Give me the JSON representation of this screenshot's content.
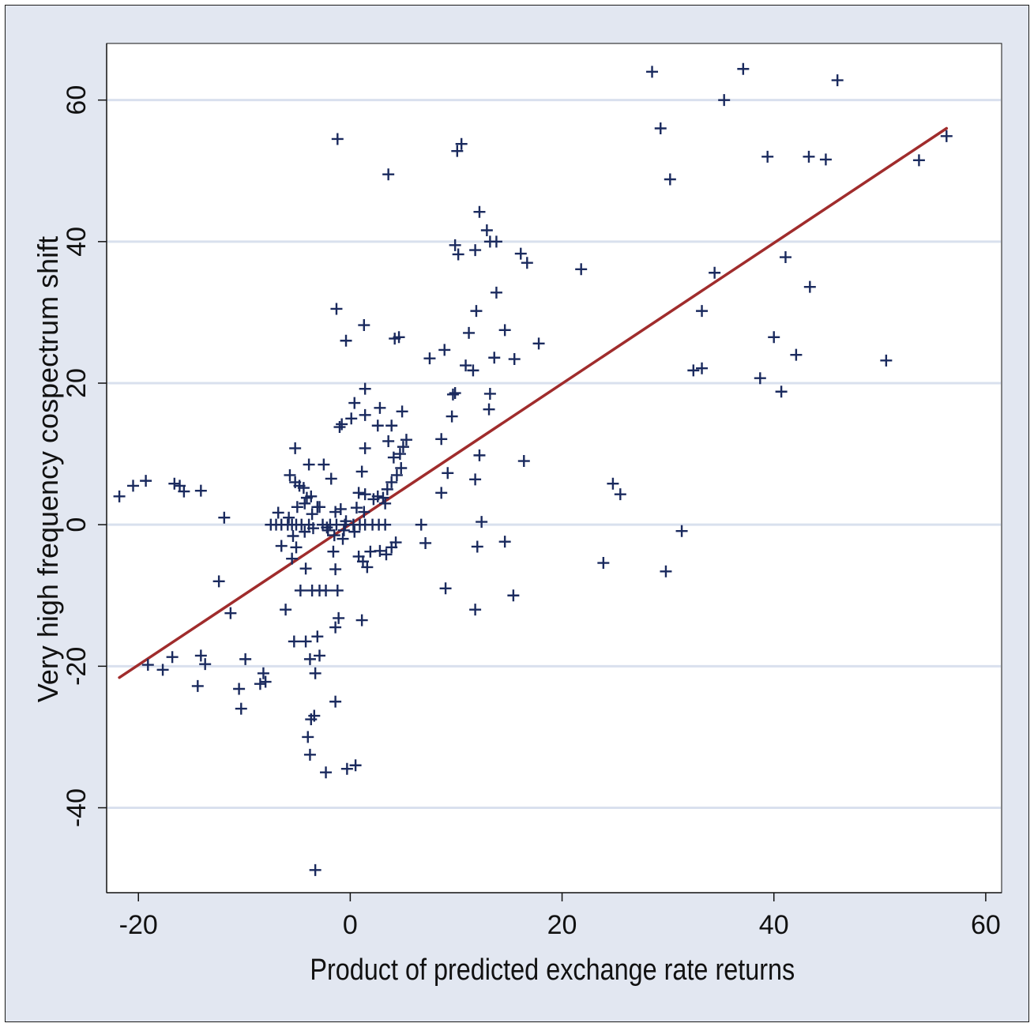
{
  "colors": {
    "frame_background": "#e2e7f1",
    "plot_background": "#ffffff",
    "gridline": "#d9e0ee",
    "marker": "#1a2a5e",
    "fit_line": "#a02c2c",
    "axis": "#111111"
  },
  "chart_data": {
    "type": "scatter",
    "title": "",
    "xlabel": "Product of predicted exchange rate returns",
    "ylabel": "Very high frequency cospectrum shift",
    "xlim": [
      -23,
      61.5
    ],
    "ylim": [
      -52,
      68
    ],
    "xticks": [
      -20,
      0,
      20,
      40,
      60
    ],
    "yticks": [
      -40,
      -20,
      0,
      20,
      40,
      60
    ],
    "grid": "horizontal",
    "legend": "none",
    "marker": "plus",
    "fit_line": {
      "x": [
        -21.8,
        56.3
      ],
      "y": [
        -21.6,
        56
      ]
    },
    "points": [
      [
        -21.8,
        4
      ],
      [
        -20.5,
        5.5
      ],
      [
        -19.3,
        6.2
      ],
      [
        -16.6,
        5.8
      ],
      [
        -16.1,
        5.5
      ],
      [
        -15.7,
        4.7
      ],
      [
        -14.1,
        4.8
      ],
      [
        -11.9,
        1
      ],
      [
        -12.4,
        -8
      ],
      [
        -11.3,
        -12.5
      ],
      [
        -14.1,
        -18.5
      ],
      [
        -13.7,
        -19.7
      ],
      [
        -16.8,
        -18.7
      ],
      [
        -17.7,
        -20.5
      ],
      [
        -19.1,
        -19.8
      ],
      [
        -14.4,
        -22.8
      ],
      [
        -10.5,
        -23.2
      ],
      [
        -9.9,
        -19
      ],
      [
        -10.3,
        -26
      ],
      [
        -8.2,
        -21
      ],
      [
        -8,
        -22.2
      ],
      [
        -8.5,
        -22.5
      ],
      [
        -6.5,
        -3
      ],
      [
        -6.1,
        -12
      ],
      [
        -5.3,
        -16.5
      ],
      [
        -4.2,
        -16.5
      ],
      [
        -3.8,
        -19
      ],
      [
        -2.9,
        -18.5
      ],
      [
        -3.3,
        -21
      ],
      [
        -3.7,
        -27.5
      ],
      [
        -3.4,
        -27
      ],
      [
        -4,
        -30
      ],
      [
        -3.8,
        -32.5
      ],
      [
        -2.3,
        -35
      ],
      [
        -1.4,
        -25
      ],
      [
        -0.3,
        -34.5
      ],
      [
        0.5,
        -34
      ],
      [
        -3.3,
        -48.8
      ],
      [
        -3.1,
        -15.8
      ],
      [
        -1.4,
        -14.5
      ],
      [
        -1.1,
        -13.2
      ],
      [
        1.1,
        -13.5
      ],
      [
        -3.6,
        -9.3
      ],
      [
        -2.9,
        -9.3
      ],
      [
        -2.3,
        -9.3
      ],
      [
        -1.2,
        -9.3
      ],
      [
        -4.7,
        -9.3
      ],
      [
        -4.2,
        -6.2
      ],
      [
        -5.5,
        -4.8
      ],
      [
        -5.1,
        -3.2
      ],
      [
        -4.3,
        -1
      ],
      [
        -3.5,
        -0.5
      ],
      [
        -2.1,
        -0.8
      ],
      [
        -1.5,
        -1.5
      ],
      [
        -0.7,
        -2
      ],
      [
        -7.5,
        0
      ],
      [
        -7,
        0
      ],
      [
        -6.5,
        0
      ],
      [
        -5.9,
        0
      ],
      [
        -5.5,
        0
      ],
      [
        -5.1,
        0
      ],
      [
        -4.6,
        0
      ],
      [
        -3.9,
        0
      ],
      [
        -2.6,
        0
      ],
      [
        -1.9,
        0
      ],
      [
        -1.3,
        0
      ],
      [
        -0.5,
        0
      ],
      [
        0.3,
        0
      ],
      [
        0.9,
        0
      ],
      [
        1.4,
        0
      ],
      [
        2.1,
        0
      ],
      [
        2.7,
        0
      ],
      [
        3.3,
        0
      ],
      [
        -6.8,
        1.7
      ],
      [
        -5.8,
        1
      ],
      [
        -5,
        2.5
      ],
      [
        -4.3,
        3
      ],
      [
        -3.6,
        1.5
      ],
      [
        -2.9,
        2.5
      ],
      [
        -1.4,
        1.8
      ],
      [
        -0.9,
        2.2
      ],
      [
        0.6,
        2.4
      ],
      [
        1.3,
        1.8
      ],
      [
        2.2,
        3.6
      ],
      [
        3.1,
        3.8
      ],
      [
        3.5,
        5
      ],
      [
        3.9,
        6
      ],
      [
        4.4,
        7
      ],
      [
        4.8,
        8
      ],
      [
        5,
        11
      ],
      [
        5.3,
        12
      ],
      [
        4.7,
        10
      ],
      [
        4.1,
        9.5
      ],
      [
        -5.7,
        7
      ],
      [
        -5.2,
        6
      ],
      [
        -4.8,
        5.5
      ],
      [
        -4.4,
        5.2
      ],
      [
        -3.7,
        4
      ],
      [
        -1.8,
        6.5
      ],
      [
        -5.2,
        10.8
      ],
      [
        -3.9,
        8.5
      ],
      [
        -2.5,
        8.5
      ],
      [
        -4.1,
        3.8
      ],
      [
        -5.4,
        -1.6
      ],
      [
        -3.1,
        2.5
      ],
      [
        -2.2,
        -0.4
      ],
      [
        -1.6,
        -3.8
      ],
      [
        -0.6,
        -0.8
      ],
      [
        -1.4,
        -6.3
      ],
      [
        -0.4,
        0.5
      ],
      [
        0.4,
        -1
      ],
      [
        0.8,
        -4.5
      ],
      [
        1.2,
        -5.2
      ],
      [
        1.6,
        -6
      ],
      [
        1.9,
        -3.8
      ],
      [
        2.8,
        -3.7
      ],
      [
        3.4,
        -4.2
      ],
      [
        3.9,
        -3.2
      ],
      [
        4.3,
        -2.5
      ],
      [
        -1,
        13.8
      ],
      [
        -0.8,
        14.2
      ],
      [
        0.1,
        15
      ],
      [
        0.4,
        17.2
      ],
      [
        1.4,
        15.5
      ],
      [
        1.4,
        19.2
      ],
      [
        2.6,
        14
      ],
      [
        2.8,
        16.5
      ],
      [
        3.9,
        14
      ],
      [
        3.6,
        11.8
      ],
      [
        4.9,
        16
      ],
      [
        1.4,
        10.8
      ],
      [
        1.1,
        7.5
      ],
      [
        0.8,
        4.5
      ],
      [
        1.4,
        4.3
      ],
      [
        2.6,
        4
      ],
      [
        3.3,
        3
      ],
      [
        -1.3,
        30.5
      ],
      [
        -0.4,
        26
      ],
      [
        1.3,
        28.2
      ],
      [
        4.2,
        26.3
      ],
      [
        4.6,
        26.5
      ],
      [
        -1.2,
        54.5
      ],
      [
        3.6,
        49.5
      ],
      [
        10.1,
        52.8
      ],
      [
        10.5,
        53.8
      ],
      [
        9.9,
        39.5
      ],
      [
        10.2,
        38.2
      ],
      [
        11.8,
        38.8
      ],
      [
        12.2,
        44.2
      ],
      [
        12.9,
        41.6
      ],
      [
        13.2,
        40
      ],
      [
        13.8,
        40
      ],
      [
        16.1,
        38.3
      ],
      [
        16.7,
        37
      ],
      [
        21.8,
        36.1
      ],
      [
        13.8,
        32.8
      ],
      [
        14.6,
        27.5
      ],
      [
        11.9,
        30.2
      ],
      [
        11.2,
        27.1
      ],
      [
        10.9,
        22.5
      ],
      [
        11.6,
        21.8
      ],
      [
        13.6,
        23.6
      ],
      [
        15.5,
        23.4
      ],
      [
        17.8,
        25.6
      ],
      [
        7.5,
        23.5
      ],
      [
        8.9,
        24.7
      ],
      [
        9.7,
        18.4
      ],
      [
        9.9,
        18.6
      ],
      [
        13.2,
        18.5
      ],
      [
        13.1,
        16.3
      ],
      [
        9.6,
        15.3
      ],
      [
        8.6,
        12.1
      ],
      [
        12.2,
        9.8
      ],
      [
        16.4,
        9
      ],
      [
        9.2,
        7.3
      ],
      [
        11.8,
        6.4
      ],
      [
        8.6,
        4.5
      ],
      [
        12.4,
        0.4
      ],
      [
        6.7,
        0
      ],
      [
        7.1,
        -2.6
      ],
      [
        12,
        -3.1
      ],
      [
        14.6,
        -2.4
      ],
      [
        9,
        -9
      ],
      [
        11.8,
        -12
      ],
      [
        15.4,
        -10
      ],
      [
        28.5,
        64
      ],
      [
        29.3,
        56
      ],
      [
        30.2,
        48.8
      ],
      [
        35.3,
        60
      ],
      [
        37.1,
        64.4
      ],
      [
        39.4,
        52
      ],
      [
        43.3,
        52
      ],
      [
        44.9,
        51.6
      ],
      [
        46,
        62.8
      ],
      [
        53.7,
        51.5
      ],
      [
        56.3,
        54.9
      ],
      [
        34.4,
        35.6
      ],
      [
        41.1,
        37.8
      ],
      [
        43.4,
        33.6
      ],
      [
        33.2,
        30.2
      ],
      [
        40,
        26.5
      ],
      [
        42.1,
        24
      ],
      [
        50.6,
        23.2
      ],
      [
        32.4,
        21.8
      ],
      [
        33.2,
        22.1
      ],
      [
        38.7,
        20.7
      ],
      [
        40.7,
        18.8
      ],
      [
        24.8,
        5.8
      ],
      [
        25.5,
        4.3
      ],
      [
        31.3,
        -0.9
      ],
      [
        23.9,
        -5.4
      ],
      [
        29.8,
        -6.6
      ]
    ]
  }
}
